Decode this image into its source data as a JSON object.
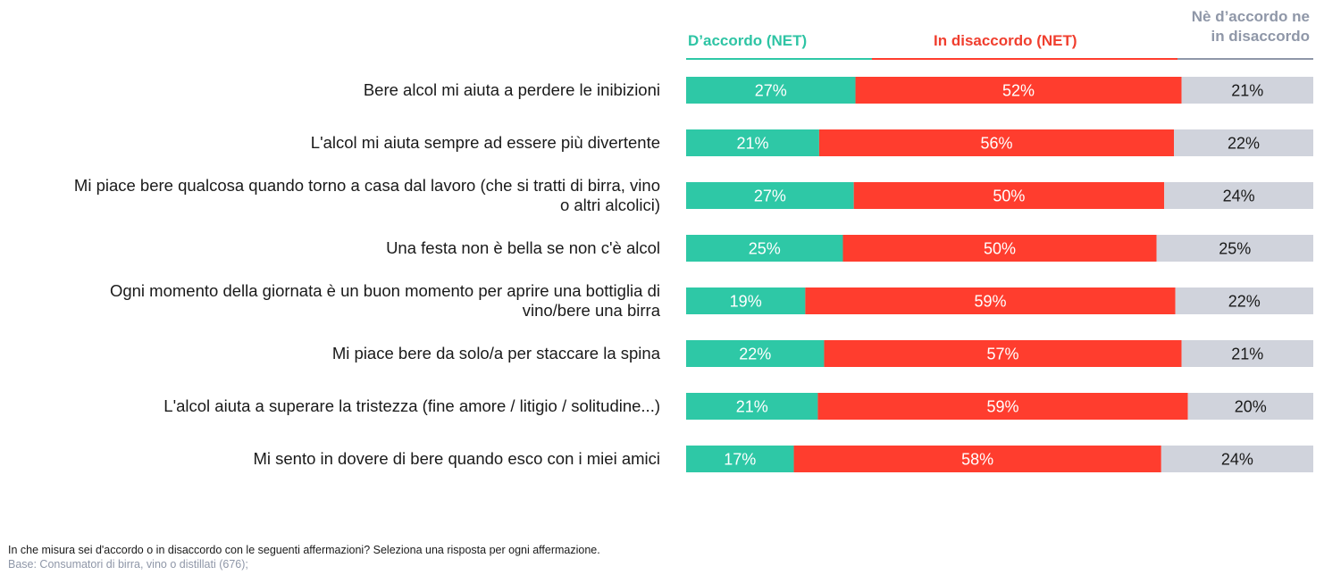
{
  "chart_data": {
    "type": "bar",
    "orientation": "horizontal",
    "stacked": true,
    "categories": [
      "Bere alcol mi aiuta a perdere le inibizioni",
      "L'alcol mi aiuta sempre ad essere più divertente",
      "Mi piace bere qualcosa quando torno a casa dal lavoro (che si tratti di birra, vino o altri alcolici)",
      "Una festa non è bella se non c'è alcol",
      "Ogni momento della giornata è un buon momento per aprire una bottiglia di vino/bere una birra",
      "Mi piace bere da solo/a per staccare la spina",
      "L'alcol aiuta a superare la tristezza (fine amore / litigio / solitudine...)",
      "Mi sento in dovere di bere quando esco con i miei amici"
    ],
    "category_lines": [
      [
        "Bere alcol mi aiuta a perdere le inibizioni"
      ],
      [
        "L'alcol mi aiuta sempre ad essere più divertente"
      ],
      [
        "Mi piace bere qualcosa quando torno a casa dal lavoro (che si tratti di birra, vino",
        "o altri alcolici)"
      ],
      [
        "Una festa non è bella se non c'è alcol"
      ],
      [
        "Ogni momento della giornata è un buon momento per aprire una bottiglia di",
        "vino/bere una birra"
      ],
      [
        "Mi piace bere da solo/a per staccare la spina"
      ],
      [
        "L'alcol aiuta a superare la tristezza (fine amore / litigio / solitudine...)"
      ],
      [
        "Mi sento in dovere di bere quando esco con i miei amici"
      ]
    ],
    "series": [
      {
        "name": "D’accordo (NET)",
        "color": "#2ec8a6",
        "values": [
          27,
          21,
          27,
          25,
          19,
          22,
          21,
          17
        ]
      },
      {
        "name": "In disaccordo (NET)",
        "color": "#ff3d2e",
        "values": [
          52,
          56,
          50,
          50,
          59,
          57,
          59,
          58
        ]
      },
      {
        "name": "Nè d’accordo ne in disaccordo",
        "color": "#d0d3dc",
        "values": [
          21,
          22,
          24,
          25,
          22,
          21,
          20,
          24
        ]
      }
    ],
    "value_suffix": "%",
    "legend_placement": "top",
    "grid": false
  },
  "legend": {
    "agree": "D’accordo (NET)",
    "disagree": "In disaccordo (NET)",
    "neutral_line1": "Nè d’accordo ne",
    "neutral_line2": "in disaccordo"
  },
  "footer": {
    "question": "In che misura sei d'accordo o in disaccordo con le seguenti affermazioni?  Seleziona una risposta per ogni affermazione.",
    "base": "Base: Consumatori di birra, vino o distillati (676);"
  }
}
